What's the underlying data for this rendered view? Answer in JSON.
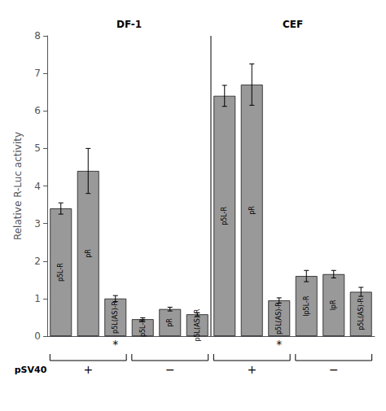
{
  "chart_data": {
    "type": "bar",
    "categories": [
      "p5L-R",
      "pR",
      "p5L(AS)-R",
      "p5L-R",
      "pR",
      "p5L(AS)-R",
      "p5L-R",
      "pR",
      "p5L(AS)-R",
      "lp5L-R",
      "lpR",
      "p5L(AS)-R"
    ],
    "values": [
      3.4,
      4.4,
      1.0,
      0.45,
      0.72,
      0.58,
      6.4,
      6.7,
      0.95,
      1.6,
      1.65,
      1.18
    ],
    "errors": [
      0.15,
      0.6,
      0.08,
      0.04,
      0.05,
      0.04,
      0.28,
      0.55,
      0.07,
      0.15,
      0.1,
      0.12
    ],
    "notes": [
      null,
      null,
      "*",
      null,
      null,
      null,
      null,
      null,
      "*",
      null,
      null,
      null
    ],
    "groups": [
      {
        "label": "DF-1",
        "sublabels": [
          "+",
          "−"
        ]
      },
      {
        "label": "CEF",
        "sublabels": [
          "+",
          "−"
        ]
      }
    ],
    "group_title": "pSV40",
    "color": "#999999",
    "ylabel": "Relative R-Luc activity",
    "ylim": [
      0,
      8
    ],
    "yticks": [
      0,
      1,
      2,
      3,
      4,
      5,
      6,
      7,
      8
    ],
    "grid": false,
    "tick_labels": "y"
  }
}
